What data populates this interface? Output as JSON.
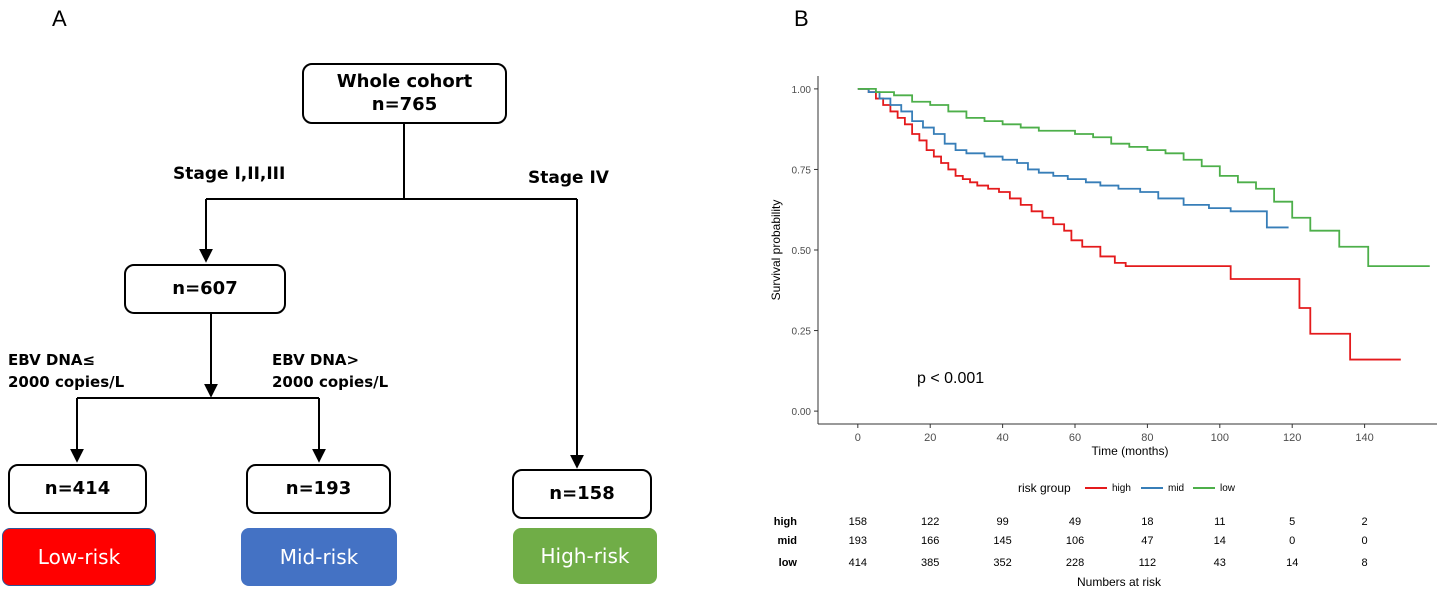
{
  "panel_a": {
    "label": "A",
    "root": {
      "title": "Whole cohort",
      "count": "n=765"
    },
    "branch_left": "Stage I,II,III",
    "branch_right": "Stage IV",
    "middle": {
      "count": "n=607"
    },
    "ebv_low": {
      "line1": "EBV DNA≤",
      "line2": "2000 copies/L"
    },
    "ebv_high": {
      "line1": "EBV DNA>",
      "line2": "2000 copies/L"
    },
    "leaves": [
      {
        "count": "n=414",
        "risk": "Low-risk",
        "color": "#ff0000"
      },
      {
        "count": "n=193",
        "risk": "Mid-risk",
        "color": "#4472c4"
      },
      {
        "count": "n=158",
        "risk": "High-risk",
        "color": "#70ad47"
      }
    ]
  },
  "panel_b": {
    "label": "B",
    "pvalue": "p < 0.001",
    "legend": {
      "title": "risk group",
      "items": [
        "high",
        "mid",
        "low"
      ]
    },
    "risk_table_title": "Numbers at risk",
    "risk_table": [
      {
        "group": "high",
        "counts": [
          "158",
          "122",
          "99",
          "49",
          "18",
          "11",
          "5",
          "2"
        ]
      },
      {
        "group": "mid",
        "counts": [
          "193",
          "166",
          "145",
          "106",
          "47",
          "14",
          "0",
          "0"
        ]
      },
      {
        "group": "low",
        "counts": [
          "414",
          "385",
          "352",
          "228",
          "112",
          "43",
          "14",
          "8"
        ]
      }
    ]
  },
  "chart_data": {
    "type": "line",
    "title": "",
    "xlabel": "Time (months)",
    "ylabel": "Survival probability",
    "xlim": [
      -11,
      160
    ],
    "ylim": [
      -0.04,
      1.04
    ],
    "xticks": [
      0,
      20,
      40,
      60,
      80,
      100,
      120,
      140
    ],
    "yticks": [
      0.0,
      0.25,
      0.5,
      0.75,
      1.0
    ],
    "ytick_labels": [
      "0.00",
      "0.25",
      "0.50",
      "0.75",
      "1.00"
    ],
    "series": [
      {
        "name": "high",
        "color": "#e41a1c",
        "x": [
          0,
          3,
          5,
          7,
          9,
          11,
          13,
          15,
          17,
          19,
          21,
          23,
          25,
          27,
          29,
          31,
          33,
          36,
          39,
          42,
          45,
          48,
          51,
          54,
          57,
          59,
          62,
          67,
          71,
          74,
          90,
          103,
          122,
          125,
          130,
          136,
          150
        ],
        "y": [
          1.0,
          0.99,
          0.97,
          0.95,
          0.93,
          0.91,
          0.89,
          0.86,
          0.84,
          0.81,
          0.79,
          0.77,
          0.75,
          0.73,
          0.72,
          0.71,
          0.7,
          0.69,
          0.68,
          0.66,
          0.64,
          0.62,
          0.6,
          0.58,
          0.56,
          0.53,
          0.51,
          0.48,
          0.46,
          0.45,
          0.45,
          0.41,
          0.32,
          0.24,
          0.24,
          0.16,
          0.16
        ]
      },
      {
        "name": "mid",
        "color": "#377eb8",
        "x": [
          0,
          3,
          6,
          9,
          12,
          15,
          18,
          21,
          24,
          27,
          30,
          35,
          40,
          44,
          47,
          50,
          54,
          58,
          63,
          67,
          72,
          78,
          83,
          90,
          97,
          103,
          108,
          113,
          119
        ],
        "y": [
          1.0,
          0.99,
          0.97,
          0.95,
          0.93,
          0.9,
          0.88,
          0.86,
          0.83,
          0.81,
          0.8,
          0.79,
          0.78,
          0.77,
          0.75,
          0.74,
          0.73,
          0.72,
          0.71,
          0.7,
          0.69,
          0.68,
          0.66,
          0.64,
          0.63,
          0.62,
          0.62,
          0.57,
          0.57
        ]
      },
      {
        "name": "low",
        "color": "#4daf4a",
        "x": [
          0,
          5,
          10,
          15,
          20,
          25,
          30,
          35,
          40,
          45,
          50,
          55,
          60,
          65,
          70,
          75,
          80,
          85,
          90,
          95,
          100,
          105,
          110,
          115,
          120,
          125,
          133,
          141,
          158
        ],
        "y": [
          1.0,
          0.99,
          0.98,
          0.96,
          0.95,
          0.93,
          0.91,
          0.9,
          0.89,
          0.88,
          0.87,
          0.87,
          0.86,
          0.85,
          0.83,
          0.82,
          0.81,
          0.8,
          0.78,
          0.76,
          0.73,
          0.71,
          0.69,
          0.65,
          0.6,
          0.56,
          0.51,
          0.45,
          0.45
        ]
      }
    ]
  }
}
